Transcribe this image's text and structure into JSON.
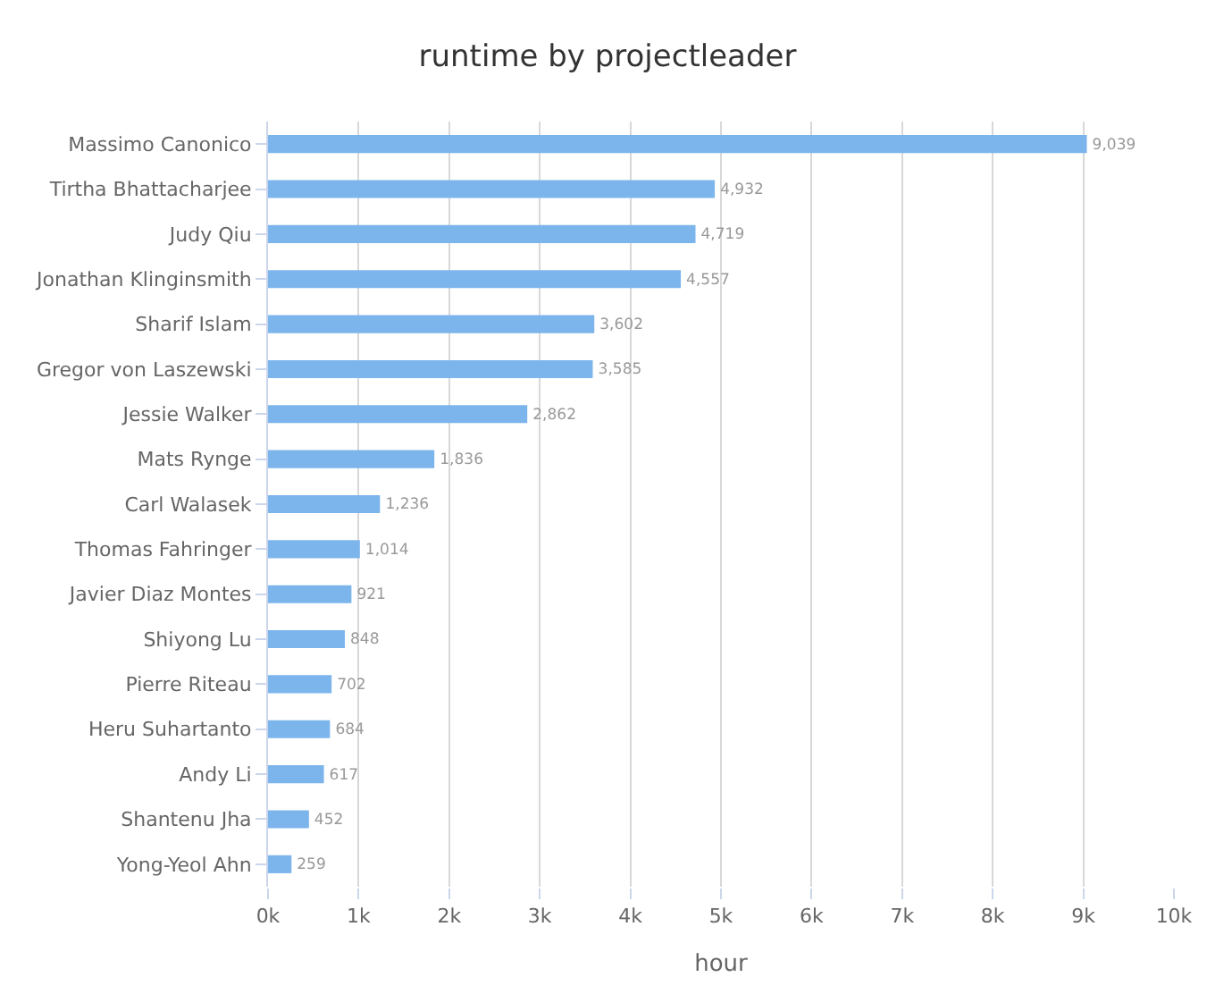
{
  "chart_data": {
    "type": "bar",
    "orientation": "horizontal",
    "title": "runtime by projectleader",
    "xlabel": "hour",
    "categories": [
      "Massimo Canonico",
      "Tirtha Bhattacharjee",
      "Judy Qiu",
      "Jonathan Klinginsmith",
      "Sharif Islam",
      "Gregor von Laszewski",
      "Jessie Walker",
      "Mats Rynge",
      "Carl Walasek",
      "Thomas Fahringer",
      "Javier Diaz Montes",
      "Shiyong Lu",
      "Pierre Riteau",
      "Heru Suhartanto",
      "Andy Li",
      "Shantenu Jha",
      "Yong-Yeol Ahn"
    ],
    "values": [
      9039,
      4932,
      4719,
      4557,
      3602,
      3585,
      2862,
      1836,
      1236,
      1014,
      921,
      848,
      702,
      684,
      617,
      452,
      259
    ],
    "value_labels": [
      "9,039",
      "4,932",
      "4,719",
      "4,557",
      "3,602",
      "3,585",
      "2,862",
      "1,836",
      "1,236",
      "1,014",
      "921",
      "848",
      "702",
      "684",
      "617",
      "452",
      "259"
    ],
    "color": "#7cb5ec",
    "xlim": [
      0,
      10000
    ],
    "xticks": [
      {
        "value": 0,
        "label": "0k"
      },
      {
        "value": 1000,
        "label": "1k"
      },
      {
        "value": 2000,
        "label": "2k"
      },
      {
        "value": 3000,
        "label": "3k"
      },
      {
        "value": 4000,
        "label": "4k"
      },
      {
        "value": 5000,
        "label": "5k"
      },
      {
        "value": 6000,
        "label": "6k"
      },
      {
        "value": 7000,
        "label": "7k"
      },
      {
        "value": 8000,
        "label": "8k"
      },
      {
        "value": 9000,
        "label": "9k"
      },
      {
        "value": 10000,
        "label": "10k"
      }
    ],
    "grid": "x",
    "legend": false
  }
}
